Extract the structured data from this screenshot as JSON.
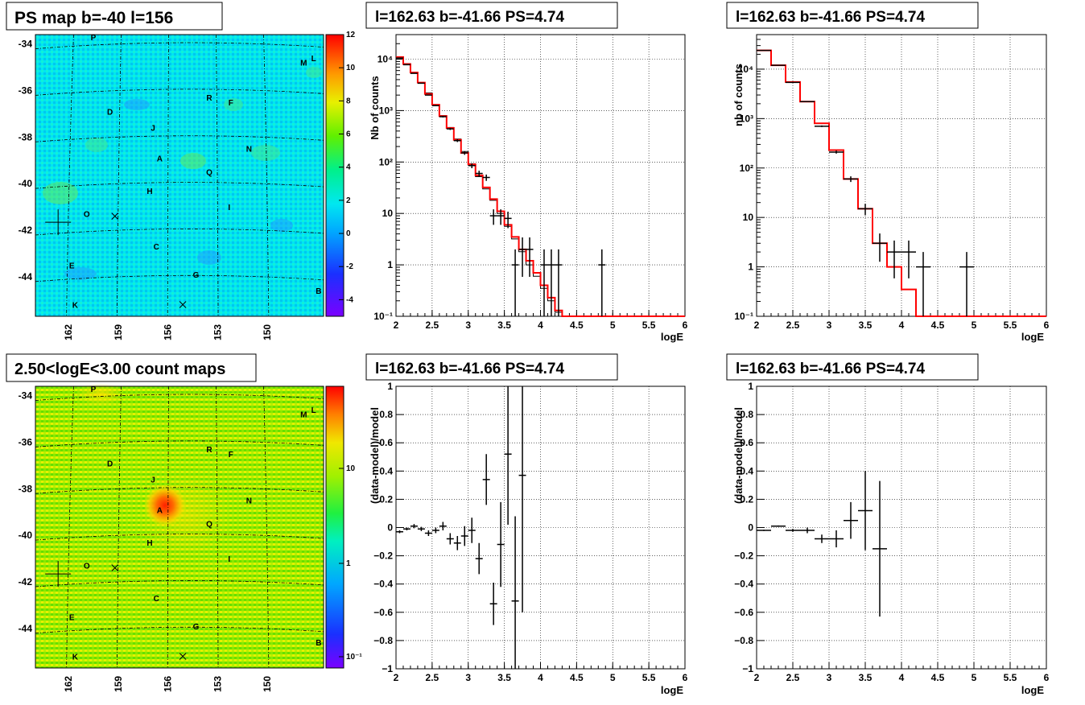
{
  "panels": {
    "map_top": {
      "title": "PS map b=-40 l=156",
      "colorbar": {
        "type": "linear",
        "min": -5,
        "max": 12,
        "ticks": [
          "12",
          "10",
          "8",
          "6",
          "4",
          "2",
          "0",
          "-2",
          "-4"
        ]
      }
    },
    "map_bottom": {
      "title": "2.50<logE<3.00 count maps",
      "colorbar": {
        "type": "log",
        "ticks": [
          "10",
          "1",
          "10⁻¹"
        ]
      }
    },
    "map_axes": {
      "x_ticks": [
        "162",
        "159",
        "156",
        "153",
        "150"
      ],
      "y_ticks": [
        "-34",
        "-36",
        "-38",
        "-40",
        "-42",
        "-44"
      ],
      "x_range": [
        164.0,
        146.6
      ],
      "y_range": [
        -45.7,
        -33.6
      ]
    },
    "source_labels": [
      {
        "label": "P",
        "l": 160.5,
        "b": -33.7
      },
      {
        "label": "M",
        "l": 147.8,
        "b": -34.8
      },
      {
        "label": "L",
        "l": 147.2,
        "b": -34.6
      },
      {
        "label": "D",
        "l": 159.5,
        "b": -36.9
      },
      {
        "label": "R",
        "l": 153.5,
        "b": -36.3
      },
      {
        "label": "F",
        "l": 152.2,
        "b": -36.5
      },
      {
        "label": "J",
        "l": 156.9,
        "b": -37.6
      },
      {
        "label": "N",
        "l": 151.1,
        "b": -38.5
      },
      {
        "label": "A",
        "l": 156.5,
        "b": -38.9
      },
      {
        "label": "Q",
        "l": 153.5,
        "b": -39.5
      },
      {
        "label": "H",
        "l": 157.1,
        "b": -40.3
      },
      {
        "label": "O",
        "l": 160.9,
        "b": -41.3
      },
      {
        "label": "I",
        "l": 152.3,
        "b": -41.0
      },
      {
        "label": "C",
        "l": 156.7,
        "b": -42.7
      },
      {
        "label": "G",
        "l": 154.3,
        "b": -43.9
      },
      {
        "label": "E",
        "l": 161.8,
        "b": -43.5
      },
      {
        "label": "B",
        "l": 146.9,
        "b": -44.6
      },
      {
        "label": "K",
        "l": 161.6,
        "b": -45.2
      }
    ],
    "spectrum_left": {
      "title": "l=162.63 b=-41.66 PS=4.74",
      "ylabel": "Nb of counts",
      "xlabel": "logE"
    },
    "spectrum_right": {
      "title": "l=162.63 b=-41.66 PS=4.74",
      "ylabel": "nb of counts",
      "xlabel": "logE"
    },
    "residual_left": {
      "title": "l=162.63 b=-41.66 PS=4.74",
      "ylabel": "(data-model)/model",
      "xlabel": "logE"
    },
    "residual_right": {
      "title": "l=162.63 b=-41.66 PS=4.74",
      "ylabel": "(data-model)/model",
      "xlabel": "logE"
    }
  },
  "chart_data": [
    {
      "type": "heatmap",
      "title": "PS map b=-40 l=156",
      "xticks": [
        "162",
        "159",
        "156",
        "153",
        "150"
      ],
      "yticks": [
        "-34",
        "-36",
        "-38",
        "-40",
        "-42",
        "-44"
      ],
      "zrange": [
        -5,
        12
      ]
    },
    {
      "type": "heatmap",
      "title": "2.50<logE<3.00 count maps",
      "xticks": [
        "162",
        "159",
        "156",
        "153",
        "150"
      ],
      "yticks": [
        "-34",
        "-36",
        "-38",
        "-40",
        "-42",
        "-44"
      ],
      "zscale": "log",
      "hotspot": {
        "label": "A",
        "l": 156.5,
        "b": -38.9
      }
    },
    {
      "type": "line",
      "title": "l=162.63 b=-41.66 PS=4.74",
      "xlabel": "logE",
      "ylabel": "Nb of counts",
      "xlim": [
        2,
        6
      ],
      "ylim": [
        0.1,
        30000
      ],
      "yscale": "log",
      "xticks": [
        "2",
        "2.5",
        "3",
        "3.5",
        "4",
        "4.5",
        "5",
        "5.5",
        "6"
      ],
      "yticks": [
        "10⁻¹",
        "1",
        "10",
        "10²",
        "10³",
        "10⁴"
      ],
      "binwidth": 0.1,
      "model_x": [
        2.0,
        2.1,
        2.2,
        2.3,
        2.4,
        2.5,
        2.6,
        2.7,
        2.8,
        2.9,
        3.0,
        3.1,
        3.2,
        3.3,
        3.4,
        3.5,
        3.6,
        3.7,
        3.8,
        3.9,
        4.0,
        4.1,
        4.2
      ],
      "model_y": [
        11000,
        8000,
        5500,
        3500,
        2100,
        1300,
        780,
        460,
        270,
        150,
        90,
        55,
        32,
        19,
        11,
        6,
        3.5,
        2,
        1.2,
        0.7,
        0.4,
        0.23,
        0.13
      ],
      "model2_x": [
        2.0,
        2.1,
        2.2,
        2.3,
        2.4,
        2.5,
        2.6,
        2.7,
        2.8,
        2.9,
        3.0,
        3.1,
        3.2,
        3.3,
        3.4,
        3.5,
        3.6,
        3.7,
        3.8,
        3.9,
        4.0,
        4.1,
        4.2
      ],
      "model2_y": [
        11000,
        8200,
        5400,
        3500,
        2200,
        1300,
        800,
        470,
        280,
        160,
        92,
        52,
        30,
        18,
        10,
        5.6,
        3.2,
        1.8,
        1.0,
        0.6,
        0.35,
        0.2,
        0.12
      ],
      "data_x": [
        2.05,
        2.15,
        2.25,
        2.35,
        2.45,
        2.55,
        2.65,
        2.75,
        2.85,
        2.95,
        3.05,
        3.15,
        3.25,
        3.35,
        3.45,
        3.55,
        3.65,
        3.75,
        3.85,
        4.05,
        4.15,
        4.25,
        4.85
      ],
      "data_y": [
        10500,
        7800,
        5300,
        3400,
        2000,
        1250,
        760,
        440,
        260,
        150,
        85,
        60,
        50,
        9,
        9,
        8,
        1,
        2,
        2,
        1,
        1,
        1,
        1
      ]
    },
    {
      "type": "line",
      "title": "l=162.63 b=-41.66 PS=4.74",
      "xlabel": "logE",
      "ylabel": "nb of counts",
      "xlim": [
        2,
        6
      ],
      "ylim": [
        0.1,
        50000
      ],
      "yscale": "log",
      "xticks": [
        "2",
        "2.5",
        "3",
        "3.5",
        "4",
        "4.5",
        "5",
        "5.5",
        "6"
      ],
      "yticks": [
        "10⁻¹",
        "1",
        "10",
        "10²",
        "10³",
        "10⁴"
      ],
      "binwidth": 0.2,
      "model_x": [
        2.0,
        2.2,
        2.4,
        2.6,
        2.8,
        3.0,
        3.2,
        3.4,
        3.6,
        3.8,
        4.0,
        4.2
      ],
      "model_y": [
        24000,
        12000,
        5500,
        2200,
        800,
        230,
        60,
        15,
        3,
        1,
        0.35,
        0.1
      ],
      "model2_x": [
        2.0,
        2.2,
        2.4,
        2.6,
        2.8,
        3.0,
        3.2,
        3.4,
        3.6,
        3.8,
        4.0,
        4.2
      ],
      "model2_y": [
        24000,
        12000,
        5500,
        2200,
        800,
        230,
        60,
        15,
        3,
        1,
        0.35,
        0.1
      ],
      "data_x": [
        2.1,
        2.3,
        2.5,
        2.7,
        2.9,
        3.1,
        3.3,
        3.5,
        3.7,
        3.9,
        4.1,
        4.3,
        4.9
      ],
      "data_y": [
        24000,
        12000,
        5400,
        2200,
        700,
        210,
        60,
        15,
        3,
        2,
        2,
        1,
        1
      ]
    },
    {
      "type": "scatter",
      "title": "l=162.63 b=-41.66 PS=4.74",
      "xlabel": "logE",
      "ylabel": "(data-model)/model",
      "xlim": [
        2,
        6
      ],
      "ylim": [
        -1,
        1
      ],
      "xticks": [
        "2",
        "2.5",
        "3",
        "3.5",
        "4",
        "4.5",
        "5",
        "5.5",
        "6"
      ],
      "yticks": [
        "−1",
        "−0.8",
        "−0.6",
        "−0.4",
        "−0.2",
        "0",
        "0.2",
        "0.4",
        "0.6",
        "0.8",
        "1"
      ],
      "binwidth": 0.1,
      "x": [
        2.05,
        2.15,
        2.25,
        2.35,
        2.45,
        2.55,
        2.65,
        2.75,
        2.85,
        2.95,
        3.05,
        3.15,
        3.25,
        3.35,
        3.45,
        3.55,
        3.65,
        3.75
      ],
      "y": [
        -0.03,
        -0.01,
        0.01,
        -0.01,
        -0.04,
        -0.02,
        0.01,
        -0.08,
        -0.11,
        -0.06,
        -0.02,
        -0.22,
        0.34,
        -0.54,
        -0.12,
        0.52,
        -0.52,
        0.37
      ],
      "err": [
        0.01,
        0.01,
        0.015,
        0.015,
        0.02,
        0.02,
        0.03,
        0.04,
        0.05,
        0.07,
        0.09,
        0.11,
        0.18,
        0.15,
        0.3,
        0.5,
        0.6,
        0.97
      ]
    },
    {
      "type": "scatter",
      "title": "l=162.63 b=-41.66 PS=4.74",
      "xlabel": "logE",
      "ylabel": "(data-model)/model",
      "xlim": [
        2,
        6
      ],
      "ylim": [
        -1,
        1
      ],
      "xticks": [
        "2",
        "2.5",
        "3",
        "3.5",
        "4",
        "4.5",
        "5",
        "5.5",
        "6"
      ],
      "yticks": [
        "−1",
        "−0.8",
        "−0.6",
        "−0.4",
        "−0.2",
        "0",
        "0.2",
        "0.4",
        "0.6",
        "0.8",
        "1"
      ],
      "binwidth": 0.2,
      "x": [
        2.1,
        2.3,
        2.5,
        2.7,
        2.9,
        3.1,
        3.3,
        3.5,
        3.7
      ],
      "y": [
        -0.02,
        0.01,
        -0.02,
        -0.02,
        -0.08,
        -0.08,
        0.05,
        0.12,
        -0.15
      ],
      "err": [
        0.005,
        0.005,
        0.01,
        0.02,
        0.03,
        0.06,
        0.13,
        0.28,
        0.48
      ]
    }
  ]
}
